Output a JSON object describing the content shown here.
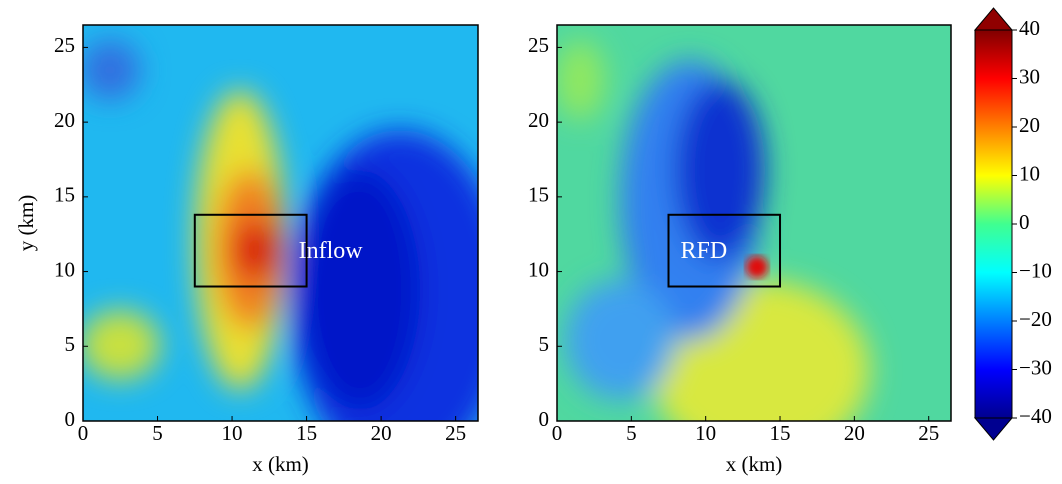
{
  "chart_data": [
    {
      "type": "heatmap",
      "xlabel": "x (km)",
      "ylabel": "y (km)",
      "xlim": [
        0,
        26.5
      ],
      "ylim": [
        0,
        26.5
      ],
      "xticks": [
        0,
        5,
        10,
        15,
        20,
        25
      ],
      "yticks": [
        0,
        5,
        10,
        15,
        20,
        25
      ],
      "box": {
        "x": [
          7.5,
          15
        ],
        "y": [
          9,
          13.8
        ]
      },
      "annotation": "Inflow"
    },
    {
      "type": "heatmap",
      "xlabel": "x (km)",
      "xlim": [
        0,
        26.5
      ],
      "ylim": [
        0,
        26.5
      ],
      "xticks": [
        0,
        5,
        10,
        15,
        20,
        25
      ],
      "yticks": [
        0,
        5,
        10,
        15,
        20,
        25
      ],
      "box": {
        "x": [
          7.5,
          15
        ],
        "y": [
          9,
          13.8
        ]
      },
      "annotation": "RFD"
    },
    {
      "type": "colorbar",
      "lim": [
        -40,
        40
      ],
      "ticks": [
        {
          "value": 40,
          "label": "40"
        },
        {
          "value": 30,
          "label": "30"
        },
        {
          "value": 20,
          "label": "20"
        },
        {
          "value": 10,
          "label": "10"
        },
        {
          "value": 0,
          "label": "0"
        },
        {
          "value": -10,
          "label": "−10"
        },
        {
          "value": -20,
          "label": "−20"
        },
        {
          "value": -30,
          "label": "−30"
        },
        {
          "value": -40,
          "label": "−40"
        }
      ]
    }
  ]
}
